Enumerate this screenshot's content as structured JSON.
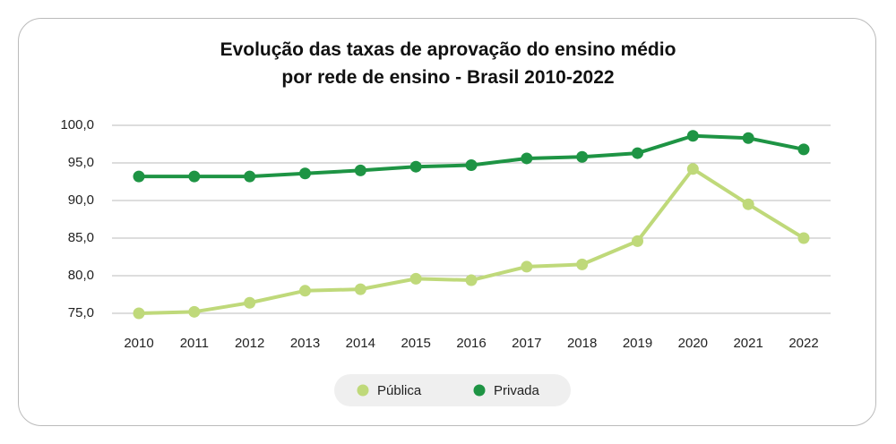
{
  "chart_data": {
    "type": "line",
    "title": "Evolução das taxas de aprovação do ensino médio por rede de ensino - Brasil 2010-2022",
    "categories": [
      "2010",
      "2011",
      "2012",
      "2013",
      "2014",
      "2015",
      "2016",
      "2017",
      "2018",
      "2019",
      "2020",
      "2021",
      "2022"
    ],
    "series": [
      {
        "name": "Pública",
        "color": "#bfd97a",
        "values": [
          75.0,
          75.2,
          76.4,
          78.0,
          78.2,
          79.6,
          79.4,
          81.2,
          81.5,
          84.6,
          94.2,
          89.5,
          85.0
        ]
      },
      {
        "name": "Privada",
        "color": "#1e9444",
        "values": [
          93.2,
          93.2,
          93.2,
          93.6,
          94.0,
          94.5,
          94.7,
          95.6,
          95.8,
          96.3,
          98.6,
          98.3,
          96.8
        ]
      }
    ],
    "ylim": [
      75,
      100
    ],
    "yticks": [
      {
        "value": 75,
        "label": "75,0"
      },
      {
        "value": 80,
        "label": "80,0"
      },
      {
        "value": 85,
        "label": "85,0"
      },
      {
        "value": 90,
        "label": "90,0"
      },
      {
        "value": 95,
        "label": "95,0"
      },
      {
        "value": 100,
        "label": "100,0"
      }
    ],
    "grid": true,
    "legend": "bottom"
  }
}
